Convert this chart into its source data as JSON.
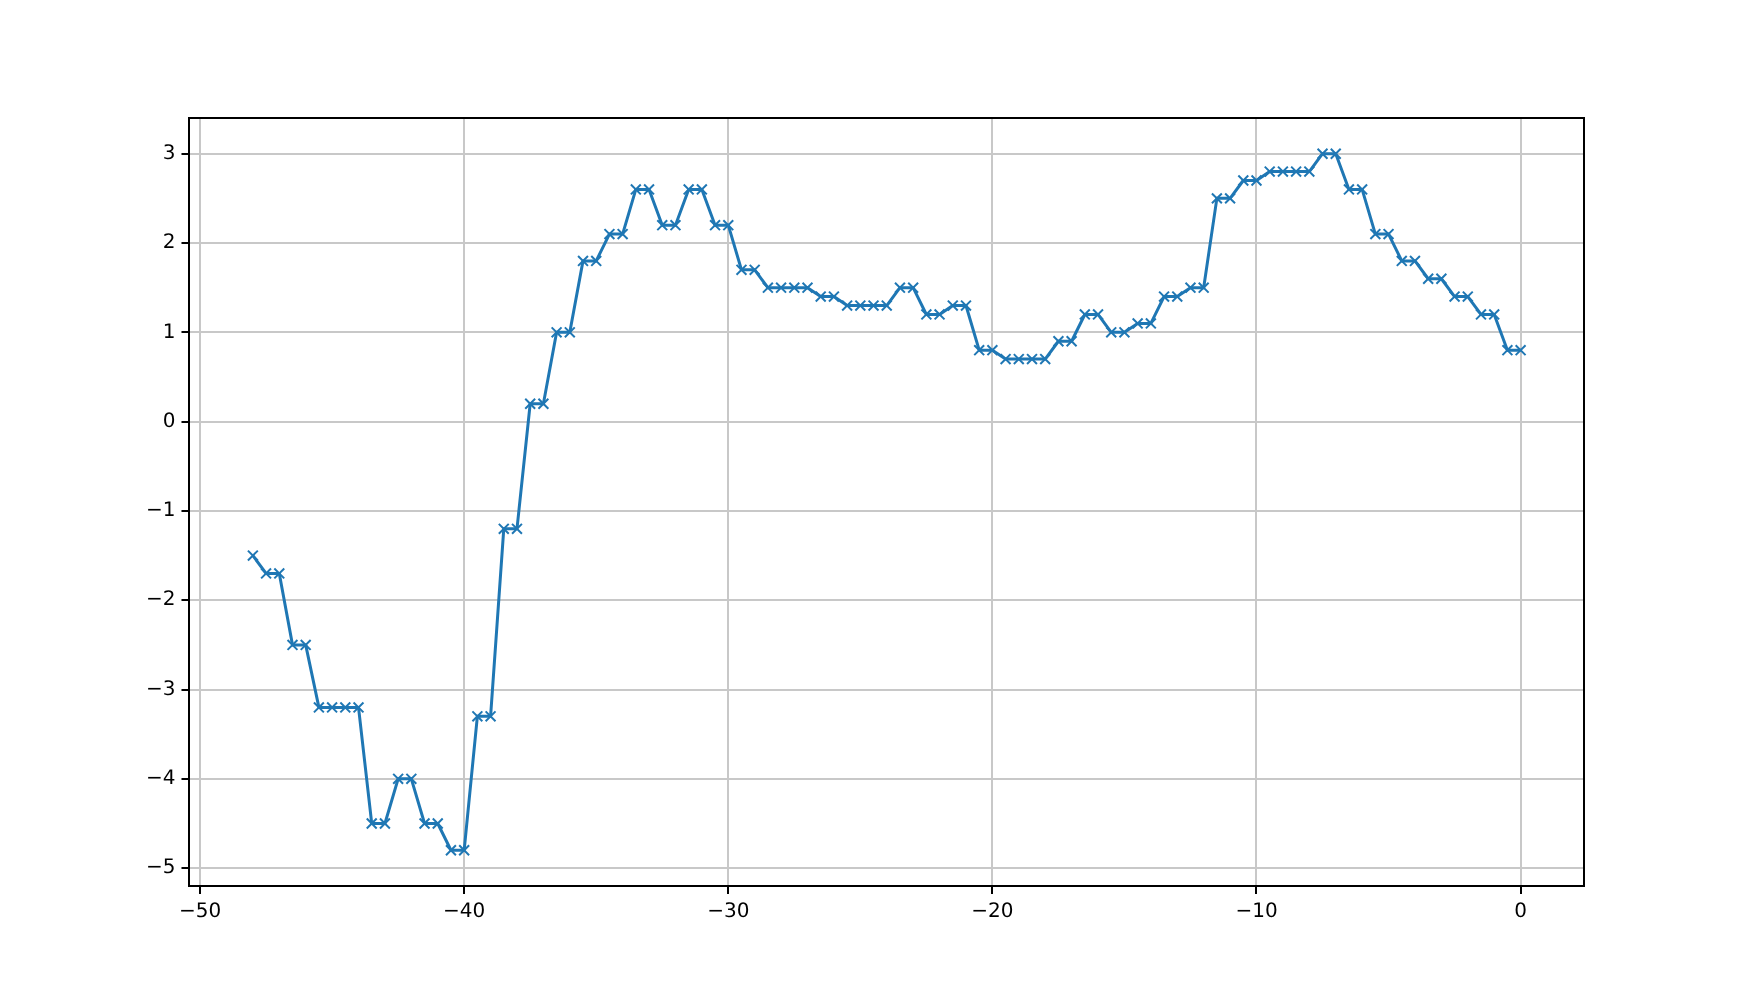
{
  "chart_data": {
    "type": "line",
    "x": [
      -48,
      -47.5,
      -47,
      -46.5,
      -46,
      -45.5,
      -45,
      -44.5,
      -44,
      -43.5,
      -43,
      -42.5,
      -42,
      -41.5,
      -41,
      -40.5,
      -40,
      -39.5,
      -39,
      -38.5,
      -38,
      -37.5,
      -37,
      -36.5,
      -36,
      -35.5,
      -35,
      -34.5,
      -34,
      -33.5,
      -33,
      -32.5,
      -32,
      -31.5,
      -31,
      -30.5,
      -30,
      -29.5,
      -29,
      -28.5,
      -28,
      -27.5,
      -27,
      -26.5,
      -26,
      -25.5,
      -25,
      -24.5,
      -24,
      -23.5,
      -23,
      -22.5,
      -22,
      -21.5,
      -21,
      -20.5,
      -20,
      -19.5,
      -19,
      -18.5,
      -18,
      -17.5,
      -17,
      -16.5,
      -16,
      -15.5,
      -15,
      -14.5,
      -14,
      -13.5,
      -13,
      -12.5,
      -12,
      -11.5,
      -11,
      -10.5,
      -10,
      -9.5,
      -9,
      -8.5,
      -8,
      -7.5,
      -7,
      -6.5,
      -6,
      -5.5,
      -5,
      -4.5,
      -4,
      -3.5,
      -3,
      -2.5,
      -2,
      -1.5,
      -1,
      -0.5,
      0
    ],
    "series": [
      {
        "color": "#1f77b4",
        "values": [
          -1.5,
          -1.7,
          -1.7,
          -2.5,
          -2.5,
          -3.2,
          -3.2,
          -3.2,
          -3.2,
          -4.5,
          -4.5,
          -4.0,
          -4.0,
          -4.5,
          -4.5,
          -4.8,
          -4.8,
          -3.3,
          -3.3,
          -1.2,
          -1.2,
          0.2,
          0.2,
          1.0,
          1.0,
          1.8,
          1.8,
          2.1,
          2.1,
          2.6,
          2.6,
          2.2,
          2.2,
          2.6,
          2.6,
          2.2,
          2.2,
          1.7,
          1.7,
          1.5,
          1.5,
          1.5,
          1.5,
          1.4,
          1.4,
          1.3,
          1.3,
          1.3,
          1.3,
          1.5,
          1.5,
          1.2,
          1.2,
          1.3,
          1.3,
          0.8,
          0.8,
          0.7,
          0.7,
          0.7,
          0.7,
          0.9,
          0.9,
          1.2,
          1.2,
          1.0,
          1.0,
          1.1,
          1.1,
          1.4,
          1.4,
          1.5,
          1.5,
          2.5,
          2.5,
          2.7,
          2.7,
          2.8,
          2.8,
          2.8,
          2.8,
          3.0,
          3.0,
          2.6,
          2.6,
          2.1,
          2.1,
          1.8,
          1.8,
          1.6,
          1.6,
          1.4,
          1.4,
          1.2,
          1.2,
          0.8,
          0.8
        ]
      }
    ],
    "xlim": [
      -50.4,
      2.4
    ],
    "ylim": [
      -5.2,
      3.4
    ],
    "xticks": [
      -50,
      -40,
      -30,
      -20,
      -10,
      0
    ],
    "yticks": [
      -5,
      -4,
      -3,
      -2,
      -1,
      0,
      1,
      2,
      3
    ],
    "grid": true,
    "marker": "cross",
    "line_style": "solid",
    "legend": false
  }
}
